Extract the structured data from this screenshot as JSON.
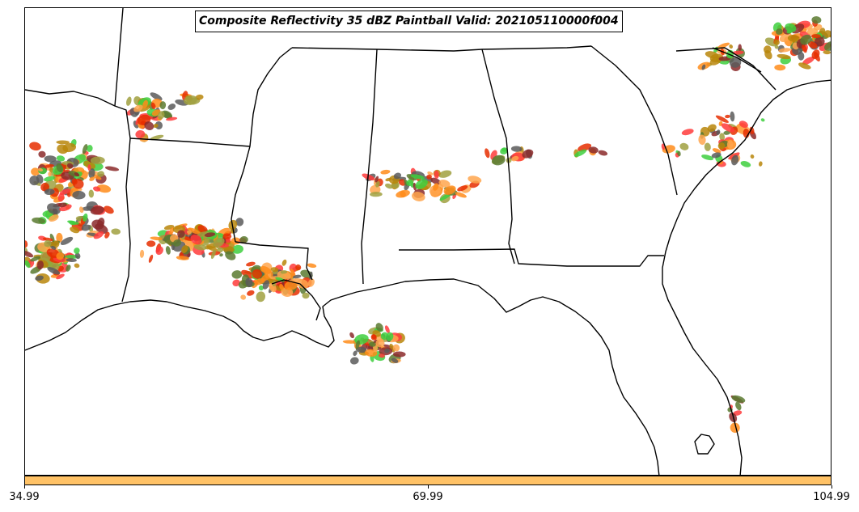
{
  "title": "Composite Reflectivity 35 dBZ Paintball Valid: 202105110000f004",
  "colorbar": {
    "color": "#ffc266",
    "ticks": [
      "34.99",
      "69.99",
      "104.99"
    ]
  },
  "member_colors": [
    "#ff3b3b",
    "#ff8c1a",
    "#ffa64d",
    "#e62e00",
    "#a0a040",
    "#5a7a30",
    "#3ecf3e",
    "#8b2a2a",
    "#5a5a5a",
    "#b8860b"
  ],
  "map": {
    "projection": "Lambert conformal",
    "region": "Southeast United States",
    "boundaries": [
      "coastline",
      "state borders"
    ],
    "paintball_clusters": [
      "north-east Texas / south-east Oklahoma",
      "central Texas",
      "north-east Louisiana to Mississippi delta",
      "Gulf of Mexico south of Louisiana",
      "central Mississippi to northern Alabama",
      "northern Georgia",
      "South Carolina to North Carolina coast",
      "northern Florida east coast"
    ]
  }
}
